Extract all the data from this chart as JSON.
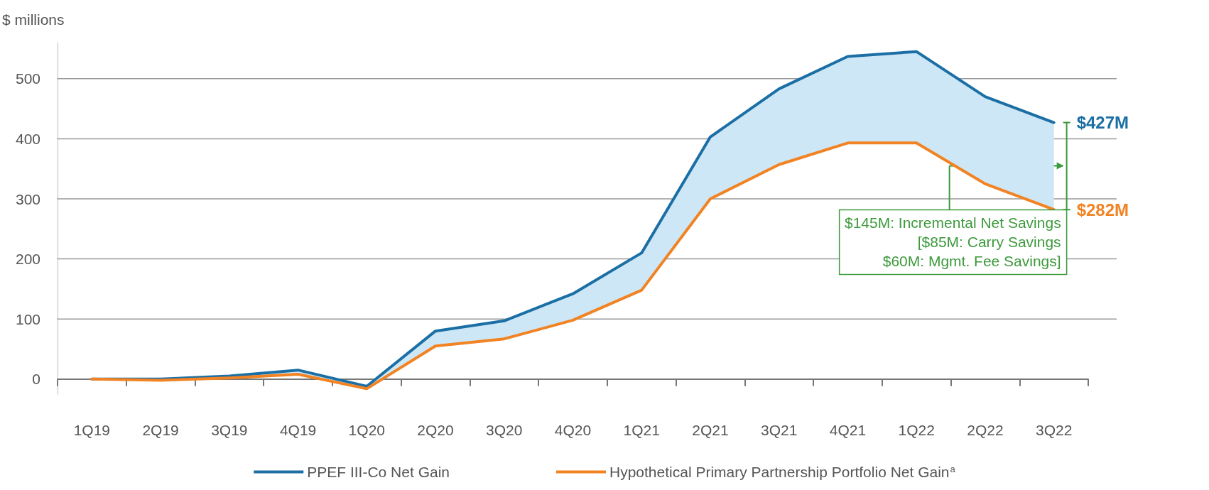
{
  "chart_data": {
    "type": "line",
    "ylabel": "$ millions",
    "categories": [
      "1Q19",
      "2Q19",
      "3Q19",
      "4Q19",
      "1Q20",
      "2Q20",
      "3Q20",
      "4Q20",
      "1Q21",
      "2Q21",
      "3Q21",
      "4Q21",
      "1Q22",
      "2Q22",
      "3Q22"
    ],
    "series": [
      {
        "name": "PPEF III-Co Net Gain",
        "color": "#1b6fa5",
        "values": [
          0,
          0,
          5,
          15,
          -12,
          80,
          97,
          142,
          210,
          403,
          483,
          537,
          545,
          470,
          427
        ],
        "lower": [
          0,
          -2,
          2,
          8,
          -16,
          55,
          67,
          98,
          148,
          300,
          357,
          393,
          393,
          325,
          282
        ],
        "upper": [
          0,
          0,
          5,
          15,
          -12,
          80,
          97,
          142,
          210,
          403,
          483,
          537,
          545,
          470,
          427
        ]
      },
      {
        "name": "Hypothetical Primary Partnership Portfolio Net Gain$^{a}$",
        "color": "#f28323",
        "values": [
          0,
          -2,
          2,
          8,
          -16,
          55,
          67,
          98,
          148,
          300,
          357,
          393,
          393,
          325,
          282
        ]
      }
    ],
    "ylim": [
      -25,
      560
    ],
    "yticks": [
      0,
      100,
      200,
      300,
      400,
      500
    ],
    "grid": "y",
    "legend": "bottom",
    "marker": "none",
    "line_style": "solid",
    "annotations": [
      {
        "text": "$427M",
        "x": "3Q22",
        "y": 427
      },
      {
        "text": "$282M",
        "x": "3Q22",
        "y": 282
      },
      {
        "text": "$145M: Incremental Net Savings",
        "y": 355
      },
      "[$85M: Carry Savings",
      "$60M: Mgmt. Fee Savings]"
    ]
  }
}
